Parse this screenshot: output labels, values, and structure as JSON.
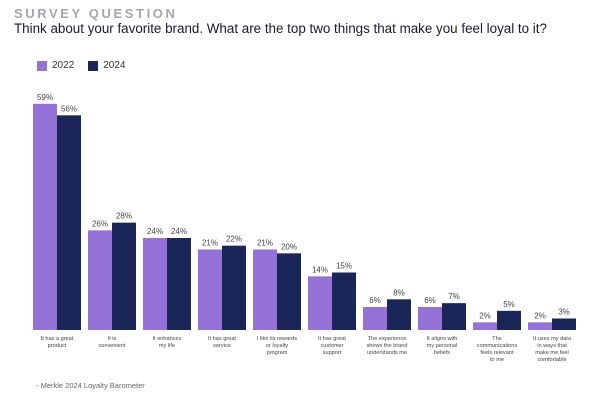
{
  "header": {
    "eyebrow": "SURVEY QUESTION",
    "question": "Think about your favorite brand. What are the top two things that make you feel loyal to it?"
  },
  "colors": {
    "series_2022": "#9572d8",
    "series_2024": "#1b2658"
  },
  "chart_data": {
    "type": "bar",
    "categories": [
      [
        "It has a great",
        "product"
      ],
      [
        "It is",
        "convenient"
      ],
      [
        "It enhances",
        "my life"
      ],
      [
        "It has great",
        "service"
      ],
      [
        "I like its rewards",
        "or loyalty",
        "program"
      ],
      [
        "It has great",
        "customer",
        "support"
      ],
      [
        "The experience",
        "shows the brand",
        "understands me"
      ],
      [
        "It aligns with",
        "my personal",
        "beliefs"
      ],
      [
        "The",
        "communications",
        "feels relevant",
        "to me"
      ],
      [
        "It uses my data",
        "in ways that",
        "make me feel",
        "comfortable"
      ]
    ],
    "series": [
      {
        "name": "2022",
        "values": [
          59,
          26,
          24,
          21,
          21,
          14,
          6,
          6,
          2,
          2
        ]
      },
      {
        "name": "2024",
        "values": [
          56,
          28,
          24,
          22,
          20,
          15,
          8,
          7,
          5,
          3
        ]
      }
    ],
    "value_suffix": "%",
    "ylim": [
      0,
      60
    ],
    "grid": false,
    "legend_position": "top-left"
  },
  "source": "- Merkle 2024 Loyalty Barometer"
}
